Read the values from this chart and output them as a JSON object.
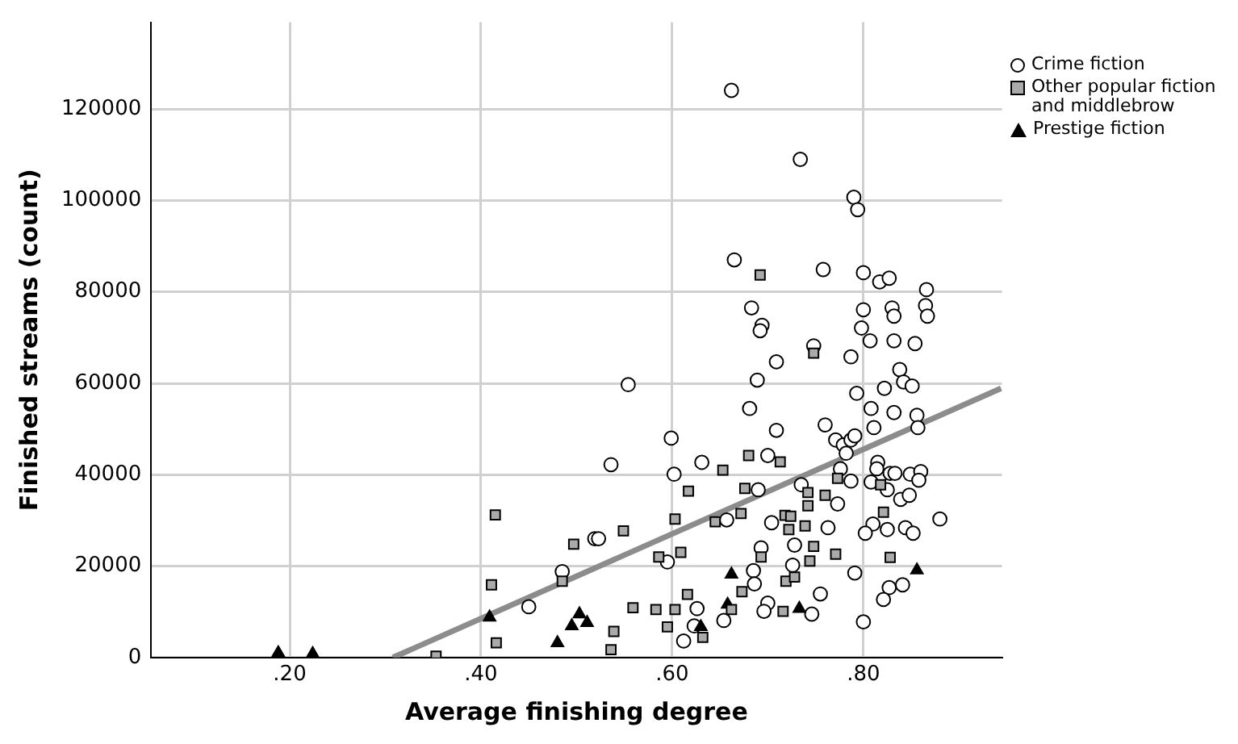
{
  "chart_data": {
    "type": "scatter",
    "xlabel": "Average finishing degree",
    "ylabel": "Finished streams (count)",
    "xlim": [
      0.055,
      0.945
    ],
    "ylim": [
      0,
      139000
    ],
    "xticks": [
      {
        "value": 0.2,
        "label": ".20"
      },
      {
        "value": 0.4,
        "label": ".40"
      },
      {
        "value": 0.6,
        "label": ".60"
      },
      {
        "value": 0.8,
        "label": ".80"
      }
    ],
    "yticks": [
      0,
      20000,
      40000,
      60000,
      80000,
      100000,
      120000
    ],
    "grid": true,
    "legend": "top right",
    "series": [
      {
        "name": "Crime fiction",
        "type": "scatter",
        "marker": "circle",
        "color": "#ffffff",
        "x": [
          0.45,
          0.485,
          0.519,
          0.662,
          0.734,
          0.665,
          0.683,
          0.694,
          0.692,
          0.709,
          0.689,
          0.681,
          0.709,
          0.554,
          0.599,
          0.536,
          0.602,
          0.631,
          0.7,
          0.69,
          0.657,
          0.704,
          0.523,
          0.595,
          0.693,
          0.728,
          0.685,
          0.726,
          0.686,
          0.7,
          0.696,
          0.654,
          0.626,
          0.623,
          0.612,
          0.79,
          0.794,
          0.758,
          0.8,
          0.817,
          0.827,
          0.866,
          0.865,
          0.867,
          0.8,
          0.83,
          0.832,
          0.798,
          0.807,
          0.832,
          0.854,
          0.787,
          0.748,
          0.838,
          0.842,
          0.851,
          0.793,
          0.822,
          0.808,
          0.832,
          0.856,
          0.857,
          0.811,
          0.76,
          0.771,
          0.779,
          0.787,
          0.791,
          0.782,
          0.815,
          0.814,
          0.828,
          0.833,
          0.849,
          0.86,
          0.858,
          0.776,
          0.787,
          0.808,
          0.825,
          0.839,
          0.848,
          0.773,
          0.81,
          0.825,
          0.844,
          0.852,
          0.802,
          0.763,
          0.88,
          0.791,
          0.827,
          0.841,
          0.821,
          0.755,
          0.746,
          0.8,
          0.735
        ],
        "values": [
          11100,
          18800,
          26000,
          124100,
          109000,
          87000,
          76500,
          72700,
          71500,
          64700,
          60700,
          54500,
          49700,
          59700,
          48000,
          42200,
          40100,
          42700,
          44200,
          36700,
          30100,
          29500,
          26000,
          20900,
          24000,
          24600,
          19000,
          20200,
          16100,
          11900,
          10100,
          8100,
          10700,
          6900,
          3600,
          100700,
          98000,
          84900,
          84200,
          82200,
          83000,
          80500,
          77000,
          74700,
          76100,
          76500,
          74700,
          72100,
          69300,
          69300,
          68700,
          65800,
          68200,
          63000,
          60300,
          59400,
          57800,
          58900,
          54500,
          53600,
          53000,
          50300,
          50300,
          50900,
          47600,
          46500,
          47600,
          48500,
          44700,
          42700,
          41300,
          40300,
          40300,
          40100,
          40700,
          38800,
          41300,
          38600,
          38400,
          36700,
          34600,
          35500,
          33600,
          29200,
          28000,
          28400,
          27200,
          27200,
          28400,
          30300,
          18500,
          15300,
          15900,
          12700,
          13900,
          9500,
          7800,
          37800
        ]
      },
      {
        "name": "Other popular fiction and middlebrow",
        "type": "scatter",
        "marker": "square",
        "color": "#aaaaaa",
        "x": [
          0.353,
          0.411,
          0.415,
          0.416,
          0.485,
          0.497,
          0.536,
          0.539,
          0.549,
          0.559,
          0.583,
          0.586,
          0.595,
          0.603,
          0.603,
          0.609,
          0.616,
          0.617,
          0.632,
          0.645,
          0.653,
          0.662,
          0.672,
          0.673,
          0.676,
          0.68,
          0.692,
          0.693,
          0.713,
          0.716,
          0.718,
          0.719,
          0.722,
          0.724,
          0.728,
          0.739,
          0.742,
          0.742,
          0.744,
          0.748,
          0.748,
          0.76,
          0.771,
          0.773,
          0.818,
          0.821,
          0.828
        ],
        "values": [
          300,
          15900,
          31200,
          3200,
          16700,
          24800,
          1700,
          5700,
          27700,
          10900,
          10500,
          22000,
          6700,
          30300,
          10500,
          23000,
          13800,
          36400,
          4400,
          29700,
          41000,
          10500,
          31500,
          14400,
          37000,
          44200,
          83700,
          22000,
          42800,
          10100,
          31100,
          16700,
          28000,
          30900,
          17600,
          28800,
          36100,
          33200,
          21100,
          66600,
          24300,
          35500,
          22600,
          39200,
          37800,
          31800,
          21900
        ]
      },
      {
        "name": "Prestige fiction",
        "type": "scatter",
        "marker": "triangle",
        "color": "#000000",
        "x": [
          0.188,
          0.224,
          0.409,
          0.48,
          0.495,
          0.503,
          0.511,
          0.63,
          0.658,
          0.662,
          0.733,
          0.856
        ],
        "values": [
          1000,
          800,
          8800,
          3200,
          6900,
          9500,
          7600,
          6700,
          11600,
          18200,
          10700,
          19100
        ]
      },
      {
        "type": "line",
        "marker": "none",
        "color": "#8c8c8c",
        "x": [
          0.308,
          0.944
        ],
        "values": [
          0,
          58900
        ]
      }
    ]
  }
}
